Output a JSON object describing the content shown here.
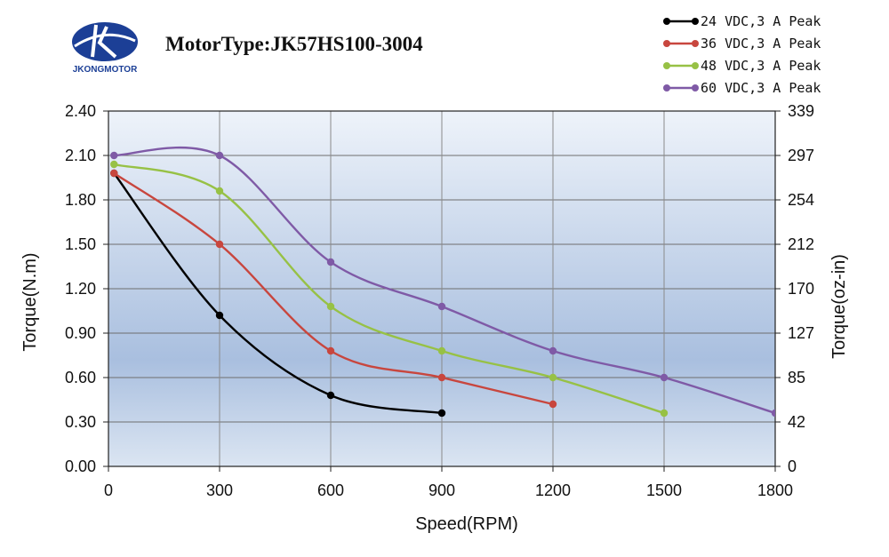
{
  "brand": {
    "name": "JKONGMOTOR",
    "logo_icon": "jk-logo-icon"
  },
  "chart_data": {
    "type": "line",
    "title": "MotorType:JK57HS100-3004",
    "xlabel": "Speed(RPM)",
    "ylabel": "Torque(N.m)",
    "y2label": "Torque(oz-in)",
    "xlim": [
      0,
      1800
    ],
    "ylim": [
      0,
      2.4
    ],
    "x_ticks": [
      "0",
      "300",
      "600",
      "900",
      "1200",
      "1500",
      "1800"
    ],
    "y_ticks": [
      "0.00",
      "0.30",
      "0.60",
      "0.90",
      "1.20",
      "1.50",
      "1.80",
      "2.10",
      "2.40"
    ],
    "y2_ticks": [
      "0",
      "42",
      "85",
      "127",
      "170",
      "212",
      "254",
      "297",
      "339"
    ],
    "grid": true,
    "legend_position": "top-right",
    "series": [
      {
        "name": "24 VDC,3 A Peak",
        "color": "#000000",
        "x": [
          15,
          300,
          600,
          900
        ],
        "y": [
          1.98,
          1.02,
          0.48,
          0.36
        ]
      },
      {
        "name": "36 VDC,3 A Peak",
        "color": "#c8463e",
        "x": [
          15,
          300,
          600,
          900,
          1200
        ],
        "y": [
          1.98,
          1.5,
          0.78,
          0.6,
          0.42
        ]
      },
      {
        "name": "48 VDC,3 A Peak",
        "color": "#97c145",
        "x": [
          15,
          300,
          600,
          900,
          1200,
          1500
        ],
        "y": [
          2.04,
          1.86,
          1.08,
          0.78,
          0.6,
          0.36
        ]
      },
      {
        "name": "60 VDC,3 A Peak",
        "color": "#7f5aa6",
        "x": [
          15,
          300,
          600,
          900,
          1200,
          1500,
          1800
        ],
        "y": [
          2.1,
          2.1,
          1.38,
          1.08,
          0.78,
          0.6,
          0.36
        ]
      }
    ]
  }
}
